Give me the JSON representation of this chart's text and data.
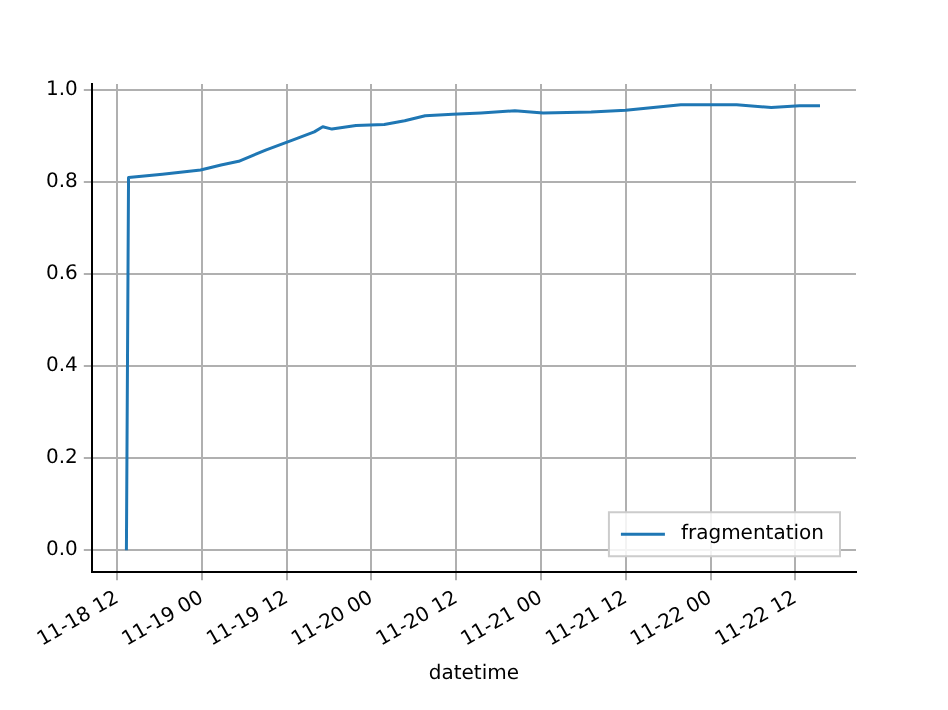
{
  "chart_data": {
    "type": "line",
    "xlabel": "datetime",
    "x": [
      "--11-18T13:18",
      "--11-18T13:36",
      "--11-18T18:24",
      "--11-18T23:48",
      "--11-19T02:42",
      "--11-19T05:12",
      "--11-19T09:06",
      "--11-19T13:00",
      "--11-19T15:54",
      "--11-19T17:06",
      "--11-19T18:24",
      "--11-19T21:48",
      "--11-20T01:48",
      "--11-20T04:42",
      "--11-20T07:36",
      "--11-20T11:30",
      "--11-20T15:30",
      "--11-20T20:18",
      "--11-21T00:18",
      "--11-21T07:06",
      "--11-21T12:00",
      "--11-21T15:54",
      "--11-21T19:48",
      "--11-22T03:42",
      "--11-22T08:36",
      "--11-22T12:36",
      "--11-22T15:30"
    ],
    "series": [
      {
        "name": "fragmentation",
        "color": "#1f77b4",
        "values": [
          0,
          0.81,
          0.817,
          0.826,
          0.837,
          0.845,
          0.87,
          0.892,
          0.909,
          0.92,
          0.915,
          0.923,
          0.925,
          0.933,
          0.944,
          0.947,
          0.95,
          0.955,
          0.95,
          0.952,
          0.956,
          0.962,
          0.968,
          0.968,
          0.962,
          0.966,
          0.966
        ]
      }
    ],
    "xlim": [
      "--11-18T08:24",
      "--11-22T20:36"
    ],
    "xticks": [
      {
        "value": "--11-18T12:00",
        "label": "11-18 12"
      },
      {
        "value": "--11-19T00:00",
        "label": "11-19 00"
      },
      {
        "value": "--11-19T12:00",
        "label": "11-19 12"
      },
      {
        "value": "--11-20T00:00",
        "label": "11-20 00"
      },
      {
        "value": "--11-20T12:00",
        "label": "11-20 12"
      },
      {
        "value": "--11-21T00:00",
        "label": "11-21 00"
      },
      {
        "value": "--11-21T12:00",
        "label": "11-21 12"
      },
      {
        "value": "--11-22T00:00",
        "label": "11-22 00"
      },
      {
        "value": "--11-22T12:00",
        "label": "11-22 12"
      }
    ],
    "ylim": [
      -0.048,
      1.013
    ],
    "yticks": [
      {
        "value": 0,
        "label": "0.0"
      },
      {
        "value": 0.2,
        "label": "0.2"
      },
      {
        "value": 0.4,
        "label": "0.4"
      },
      {
        "value": 0.6,
        "label": "0.6"
      },
      {
        "value": 0.8,
        "label": "0.8"
      },
      {
        "value": 1,
        "label": "1.0"
      }
    ],
    "grid": true,
    "legend": "bottom right",
    "marker": "none",
    "line_style": "solid"
  }
}
